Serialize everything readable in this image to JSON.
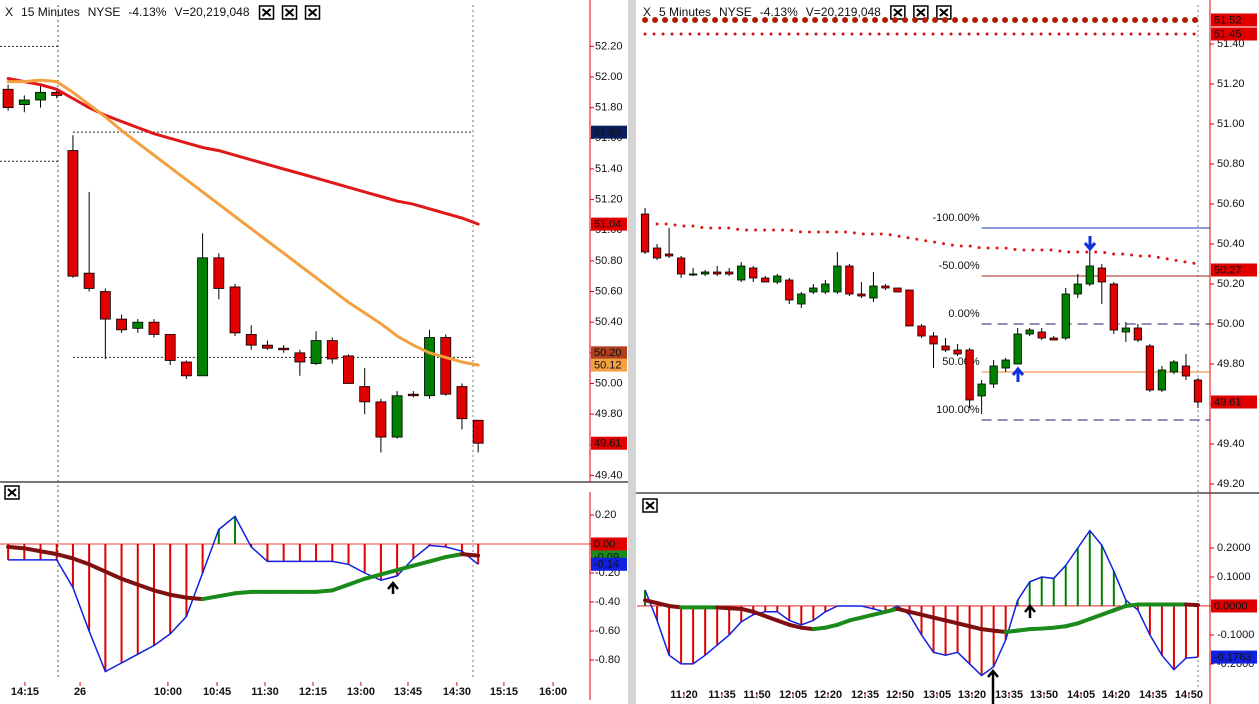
{
  "chart_data": [
    {
      "type": "candlestick",
      "header": {
        "symbol": "X",
        "interval": "15 Minutes",
        "exchange": "NYSE",
        "change": "-4.13%",
        "volume": "V=20,219,048"
      },
      "open": [
        51.92,
        51.82,
        51.85,
        51.9,
        51.52,
        50.72,
        50.6,
        50.42,
        50.36,
        50.4,
        50.32,
        50.14,
        50.05,
        50.82,
        50.63,
        50.32,
        50.25,
        50.23,
        50.2,
        50.13,
        50.28,
        50.18,
        49.98,
        49.88,
        49.65,
        49.93,
        49.92,
        50.3,
        49.98,
        49.76
      ],
      "high": [
        51.95,
        51.88,
        51.95,
        51.92,
        51.62,
        51.25,
        50.62,
        50.45,
        50.42,
        50.42,
        50.32,
        50.15,
        50.98,
        50.85,
        50.65,
        50.38,
        50.28,
        50.25,
        50.22,
        50.34,
        50.3,
        50.19,
        50.1,
        49.9,
        49.95,
        49.95,
        50.35,
        50.32,
        50.0,
        49.76
      ],
      "low": [
        51.78,
        51.77,
        51.8,
        51.86,
        50.69,
        50.6,
        50.16,
        50.33,
        50.33,
        50.3,
        50.12,
        50.03,
        50.05,
        50.55,
        50.31,
        50.22,
        50.22,
        50.2,
        50.05,
        50.12,
        50.13,
        50.0,
        49.8,
        49.55,
        49.64,
        49.91,
        49.9,
        49.92,
        49.7,
        49.55
      ],
      "close": [
        51.8,
        51.85,
        51.9,
        51.88,
        50.7,
        50.62,
        50.42,
        50.35,
        50.4,
        50.32,
        50.15,
        50.05,
        50.82,
        50.62,
        50.33,
        50.25,
        50.23,
        50.22,
        50.14,
        50.28,
        50.16,
        50.0,
        49.88,
        49.65,
        49.92,
        49.92,
        50.3,
        49.93,
        49.77,
        49.61
      ],
      "up_color": "#008000",
      "down_color": "#e00000",
      "series": [
        {
          "color": "#e01818",
          "values": [
            51.99,
            51.97,
            51.95,
            51.92,
            51.86,
            51.8,
            51.75,
            51.71,
            51.67,
            51.63,
            51.6,
            51.57,
            51.54,
            51.52,
            51.49,
            51.46,
            51.43,
            51.4,
            51.37,
            51.34,
            51.31,
            51.28,
            51.25,
            51.22,
            51.19,
            51.17,
            51.14,
            51.11,
            51.08,
            51.04
          ]
        },
        {
          "color": "#f4a040",
          "values": [
            51.97,
            51.97,
            51.98,
            51.97,
            51.9,
            51.82,
            51.74,
            51.65,
            51.57,
            51.49,
            51.41,
            51.33,
            51.25,
            51.17,
            51.09,
            51.01,
            50.93,
            50.85,
            50.77,
            50.69,
            50.61,
            50.53,
            50.46,
            50.39,
            50.31,
            50.25,
            50.2,
            50.17,
            50.14,
            50.12
          ]
        }
      ],
      "levels": [
        {
          "value": 52.2,
          "from": -0.5,
          "to": 3.1
        },
        {
          "value": 51.45,
          "from": -0.5,
          "to": 3.1
        },
        {
          "value": 51.64,
          "from": 4,
          "to": 28.7
        },
        {
          "value": 50.17,
          "from": 4,
          "to": 28.7
        }
      ],
      "price_tags": [
        {
          "value": 51.64,
          "color": "#0b1e5b"
        },
        {
          "value": 51.04,
          "color": "#e00000"
        },
        {
          "value": 50.2,
          "label": "50.20",
          "color": "#b04020"
        },
        {
          "value": 50.12,
          "color": "#f4a040"
        },
        {
          "value": 49.61,
          "color": "#e00000"
        }
      ],
      "ylim": [
        49.37,
        52.47
      ],
      "yticks": [
        {
          "value": 49.4,
          "label": "49.40"
        },
        {
          "value": 49.6,
          "label": "49.60"
        },
        {
          "value": 49.8,
          "label": "49.80"
        },
        {
          "value": 50,
          "label": "50.00"
        },
        {
          "value": 50.2,
          "label": "50.20"
        },
        {
          "value": 50.4,
          "label": "50.40"
        },
        {
          "value": 50.6,
          "label": "50.60"
        },
        {
          "value": 50.8,
          "label": "50.80"
        },
        {
          "value": 51,
          "label": "51.00"
        },
        {
          "value": 51.2,
          "label": "51.20"
        },
        {
          "value": 51.4,
          "label": "51.40"
        },
        {
          "value": 51.6,
          "label": "51.60"
        },
        {
          "value": 51.8,
          "label": "51.80"
        },
        {
          "value": 52,
          "label": "52.00"
        },
        {
          "value": 52.2,
          "label": "52.20"
        }
      ],
      "xlim": [
        -0.5,
        35.9
      ]
    },
    {
      "type": "histogram",
      "values": [
        -0.11,
        -0.11,
        -0.11,
        -0.11,
        -0.3,
        -0.6,
        -0.88,
        -0.82,
        -0.76,
        -0.7,
        -0.62,
        -0.5,
        -0.2,
        0.1,
        0.19,
        -0.02,
        -0.12,
        -0.12,
        -0.12,
        -0.12,
        -0.12,
        -0.14,
        -0.2,
        -0.25,
        -0.22,
        -0.1,
        -0.01,
        -0.02,
        -0.05,
        -0.14
      ],
      "line_color": "#1020e0",
      "up_color": "#008000",
      "down_color": "#e00000",
      "signal": {
        "up_color": "#1a8a1a",
        "down_color": "#801010",
        "values": [
          -0.02,
          -0.03,
          -0.05,
          -0.07,
          -0.1,
          -0.14,
          -0.19,
          -0.24,
          -0.28,
          -0.32,
          -0.35,
          -0.37,
          -0.38,
          -0.36,
          -0.34,
          -0.33,
          -0.33,
          -0.33,
          -0.33,
          -0.33,
          -0.32,
          -0.28,
          -0.24,
          -0.21,
          -0.18,
          -0.15,
          -0.12,
          -0.09,
          -0.07,
          -0.08
        ]
      },
      "price_tags": [
        {
          "value": -0.09,
          "color": "#1a8a1a"
        },
        {
          "value": 0,
          "label": "0.00",
          "color": "#e00000"
        },
        {
          "value": -0.14,
          "color": "#1020e0"
        }
      ],
      "ylim": [
        -0.938,
        0.324
      ],
      "yticks": [
        {
          "value": 0.2,
          "label": "0.20"
        },
        {
          "value": 0,
          "label": "0.00"
        },
        {
          "value": -0.2,
          "label": "-0.20"
        },
        {
          "value": -0.4,
          "label": "-0.40"
        },
        {
          "value": -0.6,
          "label": "-0.60"
        },
        {
          "value": -0.8,
          "label": "-0.80"
        }
      ],
      "xlim": [
        -0.5,
        35.9
      ],
      "xticks": [
        {
          "value": 1.04,
          "label": "14:15"
        },
        {
          "value": 4.44,
          "label": "26"
        },
        {
          "value": 9.86,
          "label": "10:00"
        },
        {
          "value": 12.89,
          "label": "10:45"
        },
        {
          "value": 15.85,
          "label": "11:30"
        },
        {
          "value": 18.81,
          "label": "12:15"
        },
        {
          "value": 21.77,
          "label": "13:00"
        },
        {
          "value": 24.67,
          "label": "13:45"
        },
        {
          "value": 27.69,
          "label": "14:30"
        },
        {
          "value": 30.59,
          "label": "15:15"
        },
        {
          "value": 33.62,
          "label": "16:00"
        }
      ]
    },
    {
      "type": "candlestick",
      "header": {
        "symbol": "X",
        "interval": "5 Minutes",
        "exchange": "NYSE",
        "change": "-4.13%",
        "volume": "V=20,219,048"
      },
      "open": [
        50.55,
        50.38,
        50.35,
        50.33,
        50.25,
        50.25,
        50.26,
        50.26,
        50.22,
        50.28,
        50.23,
        50.21,
        50.22,
        50.1,
        50.16,
        50.16,
        50.16,
        50.29,
        50.15,
        50.13,
        50.19,
        50.18,
        50.17,
        49.99,
        49.94,
        49.89,
        49.87,
        49.87,
        49.64,
        49.7,
        49.78,
        49.8,
        49.95,
        49.96,
        49.93,
        49.93,
        50.15,
        50.2,
        50.28,
        50.2,
        49.96,
        49.98,
        49.89,
        49.67,
        49.76,
        49.79,
        49.72
      ],
      "high": [
        50.58,
        50.4,
        50.48,
        50.34,
        50.28,
        50.27,
        50.29,
        50.28,
        50.31,
        50.29,
        50.24,
        50.25,
        50.23,
        50.16,
        50.2,
        50.22,
        50.36,
        50.3,
        50.21,
        50.26,
        50.2,
        50.18,
        50.17,
        50.0,
        49.96,
        49.93,
        49.9,
        49.88,
        49.72,
        49.82,
        49.83,
        49.98,
        49.98,
        49.98,
        49.94,
        50.18,
        50.25,
        50.37,
        50.3,
        50.21,
        50.01,
        50.0,
        49.9,
        49.79,
        49.82,
        49.85,
        49.73
      ],
      "low": [
        50.35,
        50.32,
        50.33,
        50.23,
        50.24,
        50.24,
        50.24,
        50.24,
        50.21,
        50.21,
        50.21,
        50.2,
        50.1,
        50.08,
        50.15,
        50.15,
        50.15,
        50.14,
        50.13,
        50.11,
        50.17,
        50.16,
        49.99,
        49.93,
        49.78,
        49.86,
        49.84,
        49.58,
        49.55,
        49.68,
        49.76,
        49.8,
        49.94,
        49.92,
        49.92,
        49.92,
        50.13,
        50.19,
        50.1,
        49.95,
        49.91,
        49.91,
        49.66,
        49.66,
        49.75,
        49.72,
        49.58
      ],
      "close": [
        50.36,
        50.33,
        50.34,
        50.25,
        50.25,
        50.26,
        50.25,
        50.25,
        50.29,
        50.23,
        50.21,
        50.24,
        50.12,
        50.15,
        50.18,
        50.2,
        50.29,
        50.15,
        50.14,
        50.19,
        50.18,
        50.16,
        49.99,
        49.94,
        49.9,
        49.87,
        49.85,
        49.62,
        49.7,
        49.79,
        49.82,
        49.95,
        49.97,
        49.93,
        49.92,
        50.15,
        50.2,
        50.29,
        50.21,
        49.97,
        49.98,
        49.92,
        49.67,
        49.77,
        49.81,
        49.74,
        49.61
      ],
      "up_color": "#008000",
      "down_color": "#e00000",
      "series": [
        {
          "color": "#e01818",
          "style": "dotted",
          "values": [
            null,
            50.5,
            50.5,
            50.49,
            50.49,
            50.48,
            50.48,
            50.48,
            50.47,
            50.47,
            50.47,
            50.47,
            50.47,
            50.46,
            50.46,
            50.46,
            50.46,
            50.46,
            50.45,
            50.45,
            50.45,
            50.44,
            50.43,
            50.42,
            50.41,
            50.4,
            50.39,
            50.39,
            50.38,
            50.38,
            50.38,
            50.37,
            50.37,
            50.37,
            50.37,
            50.36,
            50.36,
            50.36,
            50.36,
            50.35,
            50.35,
            50.34,
            50.34,
            50.33,
            50.32,
            50.31,
            50.3
          ]
        }
      ],
      "levels": [
        {
          "value": 51.52,
          "from": 0,
          "to": 46,
          "style": "big-dots",
          "color": "#b02000"
        },
        {
          "value": 51.45,
          "from": 0,
          "to": 46,
          "style": "small-dots",
          "color": "#d01010"
        }
      ],
      "fib_from": 28,
      "fib": [
        {
          "label": "-100.00%",
          "price": 50.48,
          "color": "#2030c0"
        },
        {
          "label": "-50.00%",
          "price": 50.24,
          "color": "#a02020"
        },
        {
          "label": "0.00%",
          "price": 50.0,
          "color": "#202080",
          "style": "dashed"
        },
        {
          "label": "50.00%",
          "price": 49.76,
          "color": "#f08030"
        },
        {
          "label": "100.00%",
          "price": 49.52,
          "color": "#202080",
          "style": "dashed"
        }
      ],
      "price_tags": [
        {
          "value": 51.52,
          "color": "#e00000"
        },
        {
          "value": 51.45,
          "color": "#e00000"
        },
        {
          "value": 50.27,
          "color": "#e00000"
        },
        {
          "value": 49.61,
          "color": "#e00000"
        }
      ],
      "ylim": [
        49.145,
        51.595
      ],
      "yticks": [
        {
          "value": 49.2,
          "label": "49.20"
        },
        {
          "value": 49.4,
          "label": "49.40"
        },
        {
          "value": 49.6,
          "label": "49.60"
        },
        {
          "value": 49.8,
          "label": "49.80"
        },
        {
          "value": 50,
          "label": "50.00"
        },
        {
          "value": 50.2,
          "label": "50.20"
        },
        {
          "value": 50.4,
          "label": "50.40"
        },
        {
          "value": 50.6,
          "label": "50.60"
        },
        {
          "value": 50.8,
          "label": "50.80"
        },
        {
          "value": 51,
          "label": "51.00"
        },
        {
          "value": 51.2,
          "label": "51.20"
        },
        {
          "value": 51.4,
          "label": "51.40"
        }
      ],
      "xlim": [
        -0.67,
        47
      ]
    },
    {
      "type": "histogram",
      "values": [
        0.055,
        -0.05,
        -0.17,
        -0.2,
        -0.2,
        -0.17,
        -0.135,
        -0.1,
        -0.055,
        -0.03,
        -0.02,
        -0.02,
        -0.05,
        -0.065,
        -0.05,
        -0.02,
        0,
        0,
        0,
        -0.01,
        -0.02,
        0,
        -0.03,
        -0.1,
        -0.16,
        -0.17,
        -0.16,
        -0.2,
        -0.24,
        -0.21,
        -0.117,
        0.02,
        0.083,
        0.1,
        0.095,
        0.14,
        0.2,
        0.26,
        0.21,
        0.12,
        0.02,
        -0.014,
        -0.1,
        -0.17,
        -0.22,
        -0.18,
        -0.1763
      ],
      "line_color": "#1020e0",
      "up_color": "#008000",
      "down_color": "#e00000",
      "signal": {
        "up_color": "#1a8a1a",
        "down_color": "#801010",
        "values": [
          0.02,
          0.01,
          0.0,
          -0.005,
          -0.005,
          -0.005,
          -0.005,
          -0.008,
          -0.01,
          -0.02,
          -0.035,
          -0.05,
          -0.065,
          -0.075,
          -0.08,
          -0.075,
          -0.065,
          -0.05,
          -0.04,
          -0.03,
          -0.02,
          -0.01,
          -0.02,
          -0.03,
          -0.04,
          -0.05,
          -0.06,
          -0.07,
          -0.08,
          -0.085,
          -0.09,
          -0.085,
          -0.08,
          -0.078,
          -0.075,
          -0.07,
          -0.06,
          -0.045,
          -0.03,
          -0.015,
          0.0,
          0.005,
          0.005,
          0.005,
          0.005,
          0.005,
          0.003
        ]
      },
      "price_tags": [
        {
          "value": 0,
          "label": "0.0000",
          "color": "#e00000"
        },
        {
          "value": -0.1763,
          "color": "#1020e0"
        }
      ],
      "ylim": [
        -0.29,
        0.376
      ],
      "yticks": [
        {
          "value": 0.2,
          "label": "0.2000"
        },
        {
          "value": 0.1,
          "label": "0.1000"
        },
        {
          "value": 0,
          "label": "0.0000"
        },
        {
          "value": -0.1,
          "label": "-0.1000"
        },
        {
          "value": -0.2,
          "label": "-0.2000"
        }
      ],
      "xlim": [
        -0.67,
        47
      ],
      "xticks": [
        {
          "value": 3.24,
          "label": "11:20"
        },
        {
          "value": 6.4,
          "label": "11:35"
        },
        {
          "value": 9.31,
          "label": "11:50"
        },
        {
          "value": 12.31,
          "label": "12:05"
        },
        {
          "value": 15.22,
          "label": "12:20"
        },
        {
          "value": 18.3,
          "label": "12:35"
        },
        {
          "value": 21.21,
          "label": "12:50"
        },
        {
          "value": 24.29,
          "label": "13:05"
        },
        {
          "value": 27.2,
          "label": "13:20"
        },
        {
          "value": 30.28,
          "label": "13:35"
        },
        {
          "value": 33.19,
          "label": "13:50"
        },
        {
          "value": 36.27,
          "label": "14:05"
        },
        {
          "value": 39.18,
          "label": "14:20"
        },
        {
          "value": 42.26,
          "label": "14:35"
        },
        {
          "value": 45.25,
          "label": "14:50"
        }
      ]
    }
  ]
}
